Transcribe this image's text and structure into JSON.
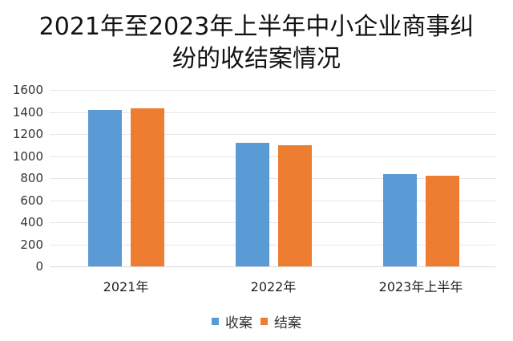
{
  "title_line1": "2021年至2023年上半年中小企业商事纠",
  "title_line2": "纷的收结案情况",
  "chart_data": {
    "type": "bar",
    "title": "2021年至2023年上半年中小企业商事纠纷的收结案情况",
    "categories": [
      "2021年",
      "2022年",
      "2023年上半年"
    ],
    "series": [
      {
        "name": "收案",
        "color": "#5B9BD5",
        "values": [
          1415,
          1120,
          836
        ]
      },
      {
        "name": "结案",
        "color": "#ED7D31",
        "values": [
          1430,
          1098,
          822
        ]
      }
    ],
    "xlabel": "",
    "ylabel": "",
    "ylim": [
      0,
      1600
    ],
    "yticks": [
      "0",
      "200",
      "400",
      "600",
      "800",
      "1000",
      "1200",
      "1400",
      "1600"
    ],
    "grid": true,
    "legend_position": "bottom"
  },
  "legend": {
    "items": [
      {
        "label": "收案",
        "color": "#5B9BD5"
      },
      {
        "label": "结案",
        "color": "#ED7D31"
      }
    ]
  }
}
